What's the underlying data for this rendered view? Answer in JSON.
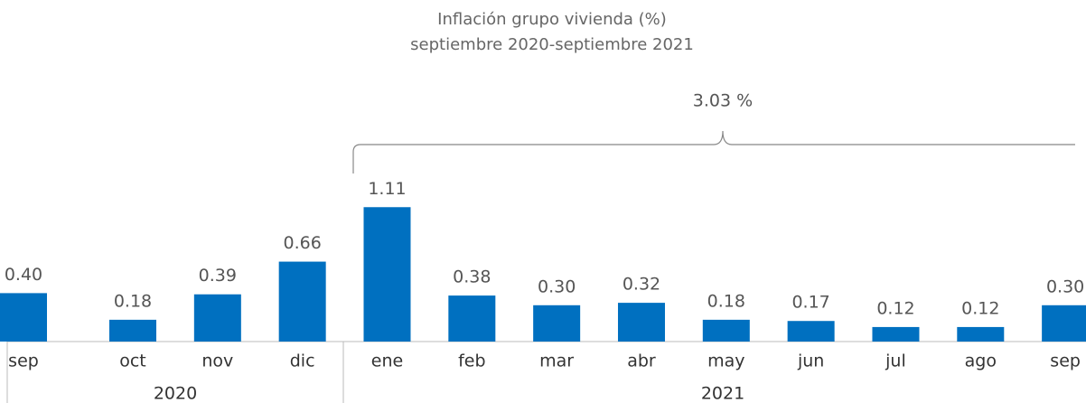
{
  "chart_data": {
    "type": "bar",
    "title": "Inflación grupo vivienda (%)",
    "subtitle": "septiembre 2020-septiembre 2021",
    "categories": [
      "sep",
      "oct",
      "nov",
      "dic",
      "ene",
      "feb",
      "mar",
      "abr",
      "may",
      "jun",
      "jul",
      "ago",
      "sep"
    ],
    "values": [
      0.4,
      0.18,
      0.39,
      0.66,
      1.11,
      0.38,
      0.3,
      0.32,
      0.18,
      0.17,
      0.12,
      0.12,
      0.3
    ],
    "value_labels": [
      "0.40",
      "0.18",
      "0.39",
      "0.66",
      "1.11",
      "0.38",
      "0.30",
      "0.32",
      "0.18",
      "0.17",
      "0.12",
      "0.12",
      "0.30"
    ],
    "groups": [
      "2020",
      "2021"
    ],
    "annotation": "3.03 %",
    "color": "#0070c0"
  }
}
